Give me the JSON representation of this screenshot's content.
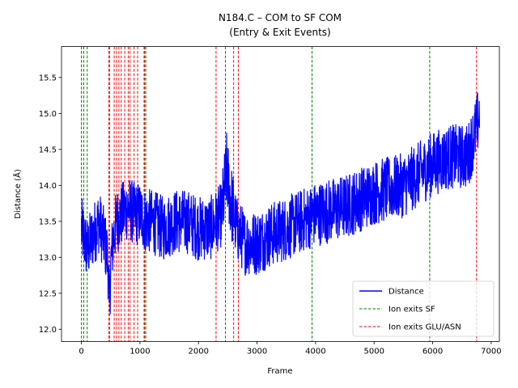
{
  "chart_data": {
    "type": "line",
    "title": "N184.C – COM to SF COM",
    "subtitle": "(Entry & Exit Events)",
    "xlabel": "Frame",
    "ylabel": "Distance (Å)",
    "xlim": [
      -340,
      7140
    ],
    "ylim": [
      11.83,
      15.93
    ],
    "xticks": [
      0,
      1000,
      2000,
      3000,
      4000,
      5000,
      6000,
      7000
    ],
    "yticks": [
      12.0,
      12.5,
      13.0,
      13.5,
      14.0,
      14.5,
      15.0,
      15.5
    ],
    "grid": false,
    "legend_position": "lower-right",
    "series": [
      {
        "name": "Distance",
        "color": "#0000ff",
        "style": "solid",
        "x": [
          0,
          100,
          200,
          300,
          400,
          450,
          480,
          500,
          550,
          600,
          700,
          800,
          900,
          1000,
          1100,
          1200,
          1400,
          1600,
          1800,
          2000,
          2200,
          2400,
          2480,
          2550,
          2650,
          2800,
          3000,
          3200,
          3500,
          4000,
          4500,
          5000,
          5500,
          6000,
          6300,
          6600,
          6750,
          6800
        ],
        "values": [
          13.4,
          13.1,
          13.3,
          13.5,
          13.2,
          13.0,
          12.3,
          12.9,
          13.3,
          13.5,
          13.6,
          13.7,
          13.6,
          13.6,
          13.5,
          13.5,
          13.4,
          13.5,
          13.5,
          13.4,
          13.4,
          13.6,
          14.2,
          13.8,
          13.4,
          13.2,
          13.2,
          13.3,
          13.4,
          13.6,
          13.7,
          13.9,
          14.0,
          14.3,
          14.4,
          14.4,
          14.8,
          15.0
        ]
      },
      {
        "name": "Ion exits SF",
        "color": "#008000",
        "style": "dashed",
        "event_frames": [
          0,
          40,
          100,
          1070,
          1100,
          2460,
          3940,
          5950
        ]
      },
      {
        "name": "Ion exits GLU/ASN",
        "color": "#ff0000",
        "style": "dashed",
        "event_frames": [
          470,
          480,
          560,
          600,
          640,
          680,
          740,
          800,
          830,
          900,
          960,
          1080,
          2300,
          2600,
          2680,
          6750
        ]
      }
    ]
  }
}
